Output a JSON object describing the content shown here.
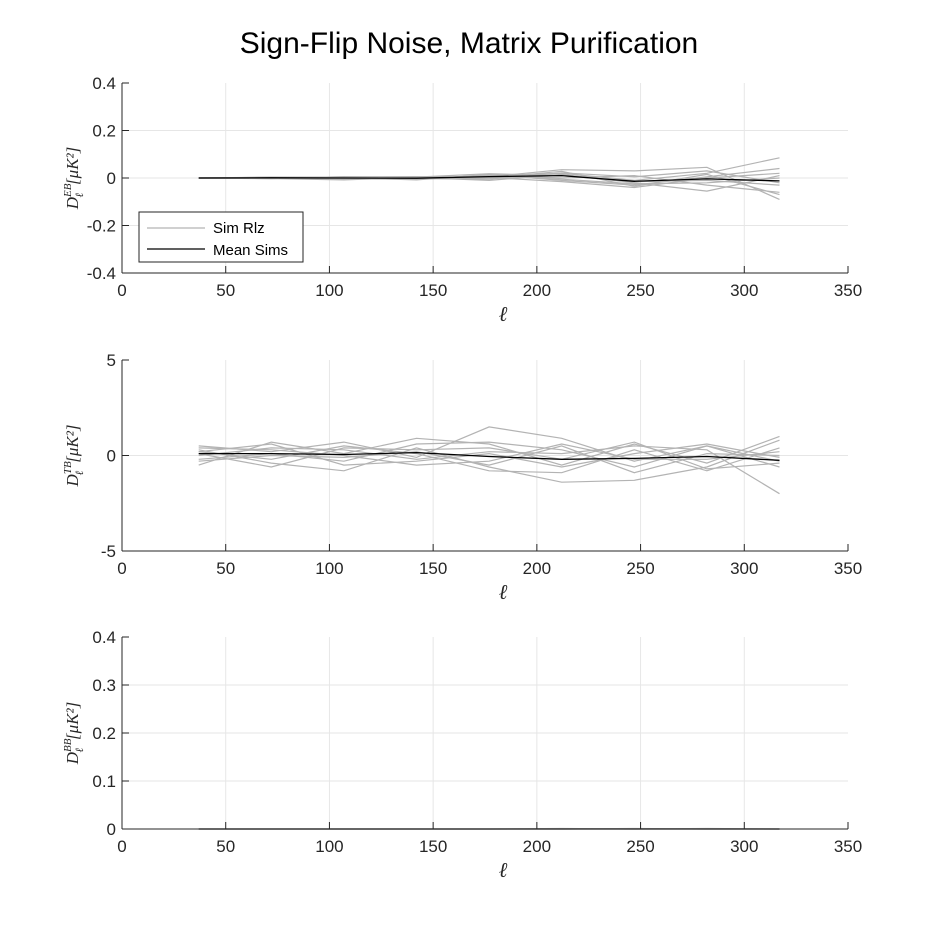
{
  "figure_title": "Sign-Flip Noise, Matrix Purification",
  "legend": {
    "sim_label": "Sim Rlz",
    "mean_label": "Mean Sims"
  },
  "colors": {
    "sim": "#b3b3b3",
    "mean": "#000000",
    "grid": "#e6e6e6",
    "axis": "#262626"
  },
  "ell_symbol": "ℓ",
  "chart_data": [
    {
      "type": "line",
      "panel": "EB",
      "xlabel": "ℓ",
      "ylabel_base": "D",
      "ylabel_sup": "EB",
      "ylabel_sub": "ℓ",
      "ylabel_unit": "[μK²]",
      "xlim": [
        0,
        350
      ],
      "ylim": [
        -0.4,
        0.4
      ],
      "xticks": [
        0,
        50,
        100,
        150,
        200,
        250,
        300,
        350
      ],
      "yticks": [
        -0.4,
        -0.2,
        0,
        0.2,
        0.4
      ],
      "ytick_labels": [
        "-0.4",
        "-0.2",
        "0",
        "0.2",
        "0.4"
      ],
      "grid": true,
      "legend_position": "bottom-left",
      "x": [
        37,
        72,
        107,
        142,
        177,
        212,
        247,
        282,
        317
      ],
      "sims": [
        [
          0.0,
          0.003,
          0.004,
          -0.004,
          0.01,
          0.02,
          -0.01,
          0.02,
          0.085
        ],
        [
          0.0,
          -0.002,
          -0.008,
          0.003,
          0.005,
          0.035,
          0.03,
          0.045,
          -0.09
        ],
        [
          0.0,
          0.004,
          0.002,
          -0.008,
          0.015,
          -0.01,
          -0.03,
          0.005,
          0.04
        ],
        [
          0.0,
          -0.003,
          0.006,
          0.002,
          -0.01,
          0.015,
          -0.02,
          -0.055,
          0.01
        ],
        [
          0.0,
          0.002,
          -0.004,
          -0.005,
          0.012,
          0.0,
          0.01,
          -0.03,
          -0.06
        ],
        [
          0.0,
          0.001,
          0.005,
          0.006,
          0.002,
          -0.015,
          -0.04,
          0.0,
          0.02
        ],
        [
          0.0,
          -0.001,
          -0.003,
          0.004,
          0.018,
          0.01,
          -0.015,
          -0.01,
          -0.03
        ],
        [
          0.0,
          0.003,
          0.001,
          -0.002,
          -0.005,
          0.022,
          0.005,
          0.03,
          -0.02
        ],
        [
          0.0,
          -0.002,
          0.003,
          0.001,
          0.008,
          -0.005,
          -0.025,
          -0.02,
          0.0
        ],
        [
          0.0,
          0.002,
          -0.002,
          -0.003,
          0.0,
          0.028,
          -0.035,
          0.015,
          -0.07
        ]
      ],
      "mean": [
        0.0,
        0.001,
        0.0,
        -0.001,
        0.006,
        0.01,
        -0.014,
        -0.004,
        -0.012
      ]
    },
    {
      "type": "line",
      "panel": "TB",
      "xlabel": "ℓ",
      "ylabel_base": "D",
      "ylabel_sup": "TB",
      "ylabel_sub": "ℓ",
      "ylabel_unit": "[μK²]",
      "xlim": [
        0,
        350
      ],
      "ylim": [
        -5,
        5
      ],
      "xticks": [
        0,
        50,
        100,
        150,
        200,
        250,
        300,
        350
      ],
      "yticks": [
        -5,
        0,
        5
      ],
      "ytick_labels": [
        "-5",
        "0",
        "5"
      ],
      "grid": true,
      "x": [
        37,
        72,
        107,
        142,
        177,
        212,
        247,
        282,
        317
      ],
      "sims": [
        [
          0.5,
          0.2,
          0.7,
          -0.1,
          1.5,
          0.9,
          -0.3,
          0.5,
          -0.3
        ],
        [
          -0.5,
          0.7,
          0.1,
          0.9,
          0.6,
          -0.5,
          0.6,
          -0.4,
          1.0
        ],
        [
          0.3,
          -0.4,
          -0.8,
          0.4,
          -0.6,
          -1.4,
          -1.3,
          -0.6,
          0.8
        ],
        [
          0.0,
          0.4,
          0.3,
          -0.2,
          0.2,
          0.1,
          0.5,
          0.3,
          -2.0
        ],
        [
          0.2,
          -0.2,
          0.5,
          0.1,
          -0.8,
          -0.9,
          0.3,
          -0.8,
          0.4
        ],
        [
          -0.2,
          0.1,
          -0.3,
          0.6,
          0.7,
          0.3,
          -0.6,
          0.5,
          -0.6
        ],
        [
          0.4,
          0.3,
          0.0,
          -0.5,
          -0.3,
          0.6,
          -0.2,
          -0.2,
          0.2
        ],
        [
          0.1,
          -0.6,
          0.4,
          0.3,
          0.4,
          -0.2,
          0.7,
          -0.7,
          -0.4
        ],
        [
          -0.3,
          0.0,
          -0.1,
          0.2,
          -0.5,
          0.5,
          -0.9,
          0.1,
          0.0
        ],
        [
          0.2,
          0.6,
          -0.5,
          -0.3,
          0.1,
          -0.6,
          0.1,
          0.6,
          -0.1
        ]
      ],
      "mean": [
        0.1,
        0.1,
        0.05,
        0.15,
        -0.05,
        -0.2,
        -0.15,
        -0.05,
        -0.25
      ]
    },
    {
      "type": "line",
      "panel": "BB",
      "xlabel": "ℓ",
      "ylabel_base": "D",
      "ylabel_sup": "BB",
      "ylabel_sub": "ℓ",
      "ylabel_unit": "[μK²]",
      "xlim": [
        0,
        350
      ],
      "ylim": [
        0,
        0.4
      ],
      "xticks": [
        0,
        50,
        100,
        150,
        200,
        250,
        300,
        350
      ],
      "yticks": [
        0,
        0.1,
        0.2,
        0.3,
        0.4
      ],
      "ytick_labels": [
        "0",
        "0.1",
        "0.2",
        "0.3",
        "0.4"
      ],
      "grid": true,
      "x": [
        37,
        72,
        107,
        142,
        177,
        212,
        247,
        282,
        317
      ],
      "sims": [
        [
          0,
          0,
          0,
          0,
          0,
          0.001,
          0,
          0.001,
          0
        ],
        [
          0,
          0,
          0,
          0,
          0,
          0,
          0.001,
          0,
          0
        ]
      ],
      "mean": [
        0,
        0,
        0,
        0,
        0,
        0,
        0,
        0,
        0
      ]
    }
  ]
}
